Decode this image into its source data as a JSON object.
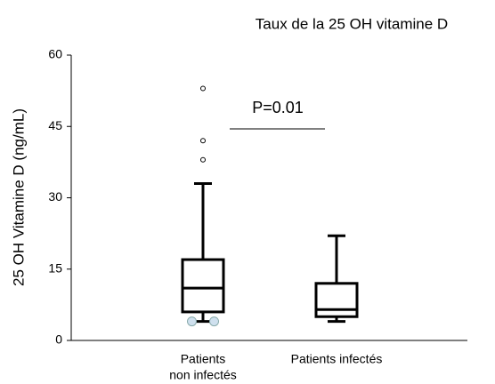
{
  "chart_data": {
    "type": "box",
    "title": "Taux de la 25 OH vitamine D",
    "y_label": "25 OH Vitamine D (ng/mL)",
    "annotation": "P=0.01",
    "categories": [
      [
        "Patients",
        "non infectés"
      ],
      [
        "Patients infectés"
      ]
    ],
    "boxes": [
      {
        "min": 4,
        "q1": 6,
        "median": 11,
        "q3": 17,
        "max": 33,
        "outliers": [
          53,
          42,
          38,
          4,
          4
        ],
        "outlier_colors": [
          "#ffffff",
          "#ffffff",
          "#ffffff",
          "#cfe0ee",
          "#cfe0ee"
        ]
      },
      {
        "min": 4,
        "q1": 5,
        "median": 6.5,
        "q3": 12,
        "max": 22,
        "outliers": [],
        "outlier_colors": []
      }
    ],
    "color": "#000000",
    "ylim": [
      0,
      60
    ],
    "yticks": [
      0,
      15,
      30,
      45,
      60
    ]
  }
}
